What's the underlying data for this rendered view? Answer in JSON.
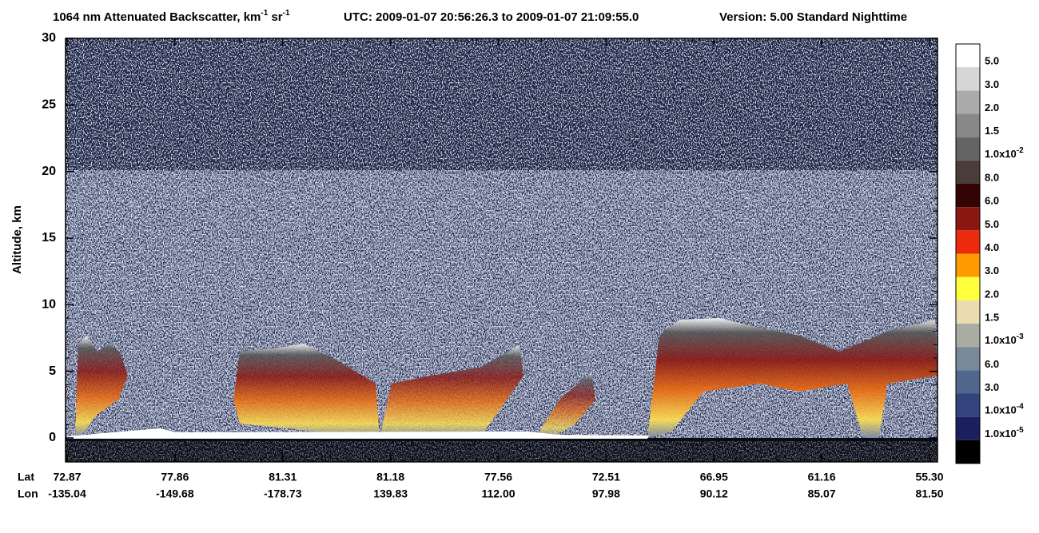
{
  "chart_data": {
    "type": "curtain",
    "title": [
      {
        "text": "1064 nm Attenuated Backscatter, km"
      },
      {
        "sup": "-1"
      },
      {
        "text": " sr"
      },
      {
        "sup": "-1"
      }
    ],
    "utc": "UTC:  2009-01-07 20:56:26.3  to  2009-01-07 21:09:55.0",
    "version": "Version: 5.00  Standard  Nighttime",
    "ylabel": "Altitude, km",
    "ylim": [
      -1.8,
      30
    ],
    "yticks": [
      0,
      5,
      10,
      15,
      20,
      25,
      30
    ],
    "x_row_labels": [
      "Lat",
      "Lon"
    ],
    "lat": [
      "72.87",
      "77.86",
      "81.31",
      "81.18",
      "77.56",
      "72.51",
      "66.95",
      "61.16",
      "55.30"
    ],
    "lon": [
      "-135.04",
      "-149.68",
      "-178.73",
      "139.83",
      "112.00",
      "97.98",
      "90.12",
      "85.07",
      "81.50"
    ],
    "colorbar": {
      "colors": [
        "#ffffff",
        "#d6d6d6",
        "#ababab",
        "#888888",
        "#646464",
        "#4a3c38",
        "#330404",
        "#8a1712",
        "#ec2b0e",
        "#ff9a00",
        "#ffff3c",
        "#eadcae",
        "#a8aca2",
        "#78899a",
        "#52678e",
        "#33437e",
        "#1c1f5e",
        "#000000"
      ],
      "labels": [
        "5.0",
        "3.0",
        "2.0",
        "1.5",
        {
          "text": "1.0x10",
          "sup": "-2"
        },
        "8.0",
        "6.0",
        "5.0",
        "4.0",
        "3.0",
        "2.0",
        "1.5",
        {
          "text": "1.0x10",
          "sup": "-3"
        },
        "6.0",
        "3.0",
        {
          "text": "1.0x10",
          "sup": "-4"
        },
        {
          "text": "1.0x10",
          "sup": "-5"
        }
      ]
    }
  }
}
